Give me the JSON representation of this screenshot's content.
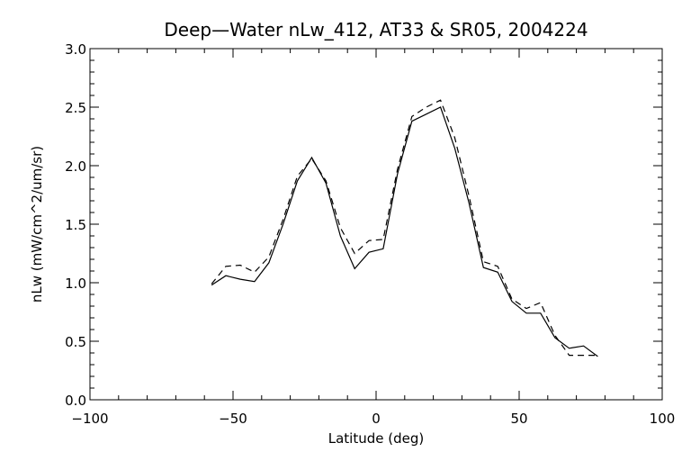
{
  "chart_data": {
    "type": "line",
    "title": "Deep—Water nLw_412, AT33 & SR05, 2004224",
    "xlabel": "Latitude (deg)",
    "ylabel": "nLw (mW/cm^2/um/sr)",
    "xlim": [
      -100,
      100
    ],
    "ylim": [
      0.0,
      3.0
    ],
    "x_ticks": [
      -100,
      -50,
      0,
      50,
      100
    ],
    "x_tick_labels": [
      "−100",
      "−50",
      "0",
      "50",
      "100"
    ],
    "y_ticks": [
      0.0,
      0.5,
      1.0,
      1.5,
      2.0,
      2.5,
      3.0
    ],
    "y_tick_labels": [
      "0.0",
      "0.5",
      "1.0",
      "1.5",
      "2.0",
      "2.5",
      "3.0"
    ],
    "x_minor_step": 10,
    "y_minor_step": 0.1,
    "grid": false,
    "legend": "none",
    "series": [
      {
        "line_style": "solid",
        "color": "#000000",
        "x": [
          -57.5,
          -52.5,
          -47.5,
          -42.5,
          -37.5,
          -32.5,
          -27.5,
          -22.5,
          -17.5,
          -12.5,
          -7.5,
          -2.5,
          2.5,
          7.5,
          12.5,
          17.5,
          22.5,
          27.5,
          32.5,
          37.5,
          42.5,
          47.5,
          52.5,
          57.5,
          62.5,
          67.5,
          72.5,
          77.5
        ],
        "y": [
          0.98,
          1.06,
          1.03,
          1.01,
          1.17,
          1.5,
          1.87,
          2.07,
          1.85,
          1.4,
          1.12,
          1.26,
          1.29,
          1.93,
          2.38,
          2.44,
          2.5,
          2.15,
          1.68,
          1.13,
          1.09,
          0.84,
          0.74,
          0.74,
          0.53,
          0.44,
          0.46,
          0.37
        ]
      },
      {
        "line_style": "dashed",
        "color": "#000000",
        "x": [
          -57.5,
          -52.5,
          -47.5,
          -42.5,
          -37.5,
          -32.5,
          -27.5,
          -22.5,
          -17.5,
          -12.5,
          -7.5,
          -2.5,
          2.5,
          7.5,
          12.5,
          17.5,
          22.5,
          27.5,
          32.5,
          37.5,
          42.5,
          47.5,
          52.5,
          57.5,
          62.5,
          67.5,
          72.5,
          77.5
        ],
        "y": [
          0.99,
          1.14,
          1.15,
          1.09,
          1.22,
          1.54,
          1.91,
          2.06,
          1.87,
          1.47,
          1.25,
          1.36,
          1.37,
          1.97,
          2.42,
          2.5,
          2.56,
          2.24,
          1.74,
          1.18,
          1.14,
          0.86,
          0.78,
          0.83,
          0.55,
          0.38,
          0.38,
          0.38
        ]
      }
    ]
  }
}
